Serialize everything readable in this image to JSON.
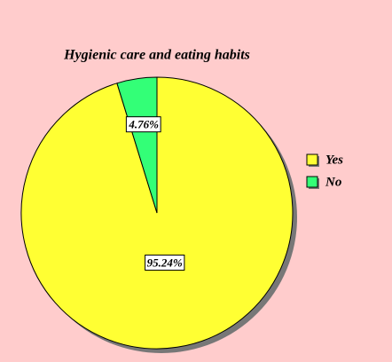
{
  "chart_data": {
    "type": "pie",
    "title": "Hygienic care and eating habits",
    "categories": [
      "Yes",
      "No"
    ],
    "values": [
      95.24,
      4.76
    ],
    "value_labels": [
      "95.24%",
      "4.76%"
    ],
    "colors": [
      "#ffff33",
      "#33ff77"
    ],
    "legend": "right"
  }
}
